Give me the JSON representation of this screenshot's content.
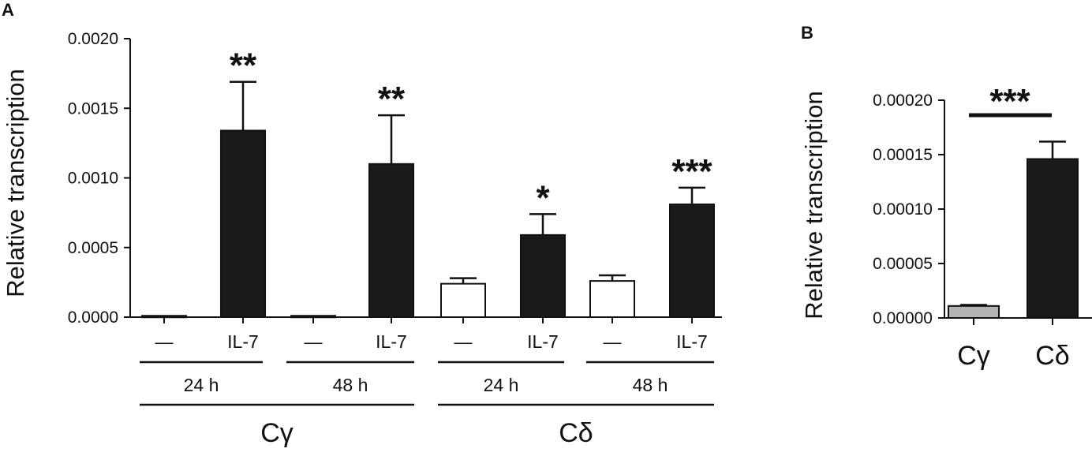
{
  "chart_data": [
    {
      "panel": "A",
      "type": "bar",
      "ylabel": "Relative transcription",
      "ylim": [
        0,
        0.002
      ],
      "yticks": [
        "0.0000",
        "0.0005",
        "0.0010",
        "0.0015",
        "0.0020"
      ],
      "categories": [
        "—",
        "IL-7",
        "—",
        "IL-7",
        "—",
        "IL-7",
        "—",
        "IL-7"
      ],
      "values": [
        1e-05,
        0.00134,
        1e-05,
        0.0011,
        0.00024,
        0.00059,
        0.00026,
        0.00081
      ],
      "errors": [
        0.0,
        0.00035,
        0.0,
        0.00035,
        4e-05,
        0.00015,
        4e-05,
        0.00012
      ],
      "fills": [
        "#ffffff",
        "#1a1a1a",
        "#ffffff",
        "#1a1a1a",
        "#ffffff",
        "#1a1a1a",
        "#ffffff",
        "#1a1a1a"
      ],
      "significance": [
        "",
        "**",
        "",
        "**",
        "",
        "*",
        "",
        "***"
      ],
      "time_groups": [
        "24 h",
        "48 h",
        "24 h",
        "48 h"
      ],
      "gene_groups": [
        "Cγ",
        "Cδ"
      ]
    },
    {
      "panel": "B",
      "type": "bar",
      "ylabel": "Relative transcription",
      "ylim": [
        0,
        0.0002
      ],
      "yticks": [
        "0.00000",
        "0.00005",
        "0.00010",
        "0.00015",
        "0.00020"
      ],
      "categories": [
        "Cγ",
        "Cδ"
      ],
      "values": [
        1.1e-05,
        0.000146
      ],
      "errors": [
        1e-06,
        1.6e-05
      ],
      "fills": [
        "#b3b3b3",
        "#1a1a1a"
      ],
      "comparison": "***"
    }
  ]
}
